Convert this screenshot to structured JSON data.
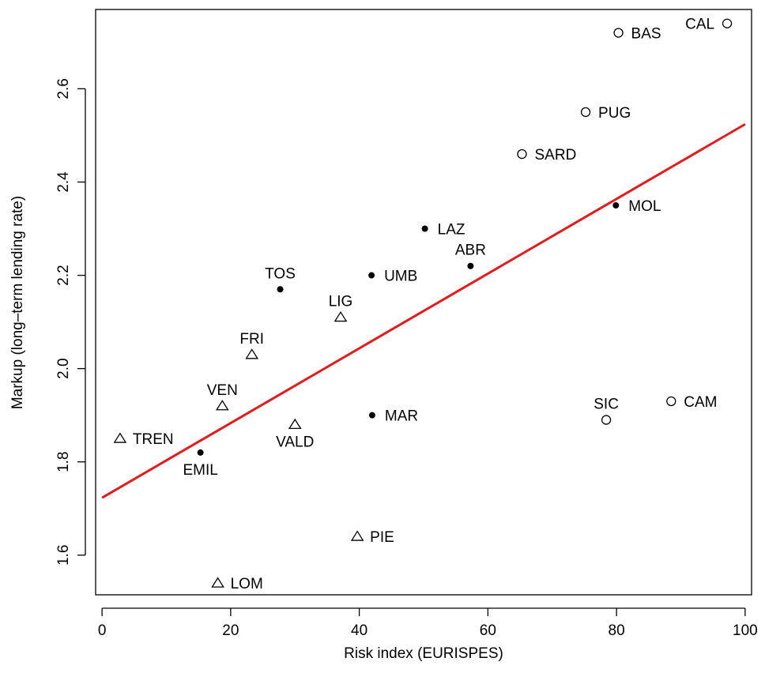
{
  "chart_data": {
    "type": "scatter",
    "title": "",
    "xlabel": "Risk index (EURISPES)",
    "ylabel": "Markup (long–term lending rate)",
    "xlim": [
      -1,
      101
    ],
    "ylim": [
      1.515,
      2.77
    ],
    "x_ticks": [
      0,
      20,
      40,
      60,
      80,
      100
    ],
    "y_ticks": [
      1.6,
      1.8,
      2.0,
      2.2,
      2.4,
      2.6
    ],
    "x_tick_labels": [
      "0",
      "20",
      "40",
      "60",
      "80",
      "100"
    ],
    "y_tick_labels": [
      "1.6",
      "1.8",
      "2.0",
      "2.2",
      "2.4",
      "2.6"
    ],
    "grid": false,
    "legend": "none",
    "marker_styles": {
      "dot": "filled circle",
      "circle": "open circle",
      "triangle": "open triangle"
    },
    "points": [
      {
        "label": "CAL",
        "x": 97.2,
        "y": 2.74,
        "marker": "circle",
        "label_pos": "left"
      },
      {
        "label": "BAS",
        "x": 80.3,
        "y": 2.72,
        "marker": "circle",
        "label_pos": "right"
      },
      {
        "label": "PUG",
        "x": 75.2,
        "y": 2.55,
        "marker": "circle",
        "label_pos": "right"
      },
      {
        "label": "SARD",
        "x": 65.3,
        "y": 2.46,
        "marker": "circle",
        "label_pos": "right"
      },
      {
        "label": "MOL",
        "x": 79.9,
        "y": 2.35,
        "marker": "dot",
        "label_pos": "right"
      },
      {
        "label": "LAZ",
        "x": 50.2,
        "y": 2.3,
        "marker": "dot",
        "label_pos": "right"
      },
      {
        "label": "ABR",
        "x": 57.3,
        "y": 2.22,
        "marker": "dot",
        "label_pos": "top"
      },
      {
        "label": "UMB",
        "x": 41.9,
        "y": 2.2,
        "marker": "dot",
        "label_pos": "right"
      },
      {
        "label": "TOS",
        "x": 27.7,
        "y": 2.17,
        "marker": "dot",
        "label_pos": "top"
      },
      {
        "label": "LIG",
        "x": 37.1,
        "y": 2.11,
        "marker": "triangle",
        "label_pos": "top"
      },
      {
        "label": "FRI",
        "x": 23.3,
        "y": 2.03,
        "marker": "triangle",
        "label_pos": "top"
      },
      {
        "label": "VEN",
        "x": 18.7,
        "y": 1.92,
        "marker": "triangle",
        "label_pos": "top"
      },
      {
        "label": "VALD",
        "x": 30.0,
        "y": 1.88,
        "marker": "triangle",
        "label_pos": "bottom"
      },
      {
        "label": "MAR",
        "x": 42.0,
        "y": 1.9,
        "marker": "dot",
        "label_pos": "right"
      },
      {
        "label": "TREN",
        "x": 2.8,
        "y": 1.85,
        "marker": "triangle",
        "label_pos": "right"
      },
      {
        "label": "EMIL",
        "x": 15.3,
        "y": 1.82,
        "marker": "dot",
        "label_pos": "bottom"
      },
      {
        "label": "SIC",
        "x": 78.4,
        "y": 1.89,
        "marker": "circle",
        "label_pos": "top"
      },
      {
        "label": "CAM",
        "x": 88.5,
        "y": 1.93,
        "marker": "circle",
        "label_pos": "right"
      },
      {
        "label": "PIE",
        "x": 39.7,
        "y": 1.64,
        "marker": "triangle",
        "label_pos": "right"
      },
      {
        "label": "LOM",
        "x": 18.0,
        "y": 1.54,
        "marker": "triangle",
        "label_pos": "right"
      }
    ],
    "fit_line": {
      "x": [
        0,
        100
      ],
      "y": [
        1.723,
        2.524
      ],
      "color": "#e41a1c"
    }
  }
}
